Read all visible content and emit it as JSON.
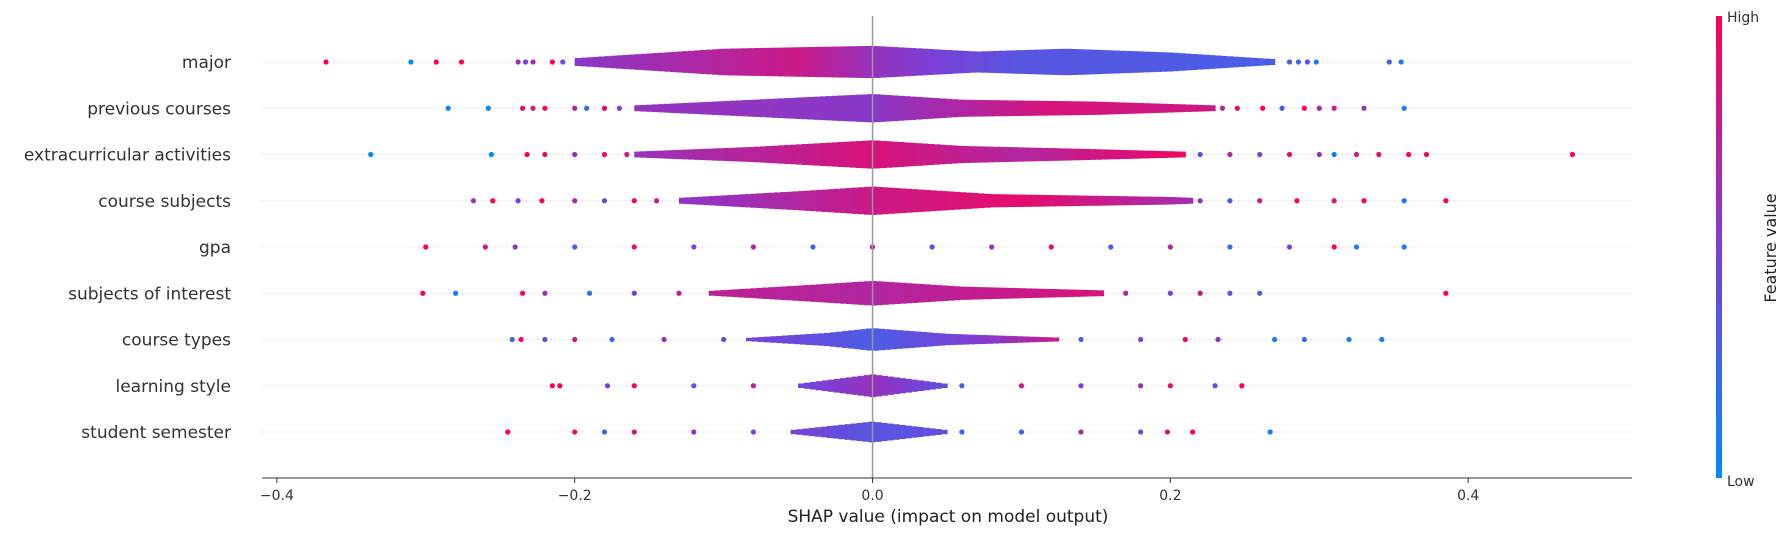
{
  "chart_data": {
    "type": "violin",
    "xlabel": "SHAP value (impact on model output)",
    "xlim": [
      -0.41,
      0.51
    ],
    "xticks": [
      -0.4,
      -0.2,
      0.0,
      0.2,
      0.4
    ],
    "xtick_labels": [
      "−0.4",
      "−0.2",
      "0.0",
      "0.2",
      "0.4"
    ],
    "colorbar": {
      "title": "Feature value",
      "high_label": "High",
      "low_label": "Low",
      "low_color": "#008bfb",
      "mid_color": "#7c3fd6",
      "high_color": "#ff0052"
    },
    "features": [
      {
        "name": "major",
        "range": [
          -0.37,
          0.355
        ],
        "density": [
          [
            -0.2,
            0.2
          ],
          [
            -0.1,
            0.7
          ],
          [
            0.0,
            0.85
          ],
          [
            0.07,
            0.55
          ],
          [
            0.13,
            0.7
          ],
          [
            0.2,
            0.5
          ],
          [
            0.27,
            0.15
          ]
        ],
        "band_color": [
          [
            -0.2,
            0.55
          ],
          [
            -0.05,
            0.8
          ],
          [
            0.0,
            0.6
          ],
          [
            0.1,
            0.35
          ],
          [
            0.27,
            0.3
          ]
        ],
        "points": [
          [
            -0.367,
            1
          ],
          [
            -0.31,
            0
          ],
          [
            -0.293,
            1
          ],
          [
            -0.276,
            1
          ],
          [
            -0.238,
            0.6
          ],
          [
            -0.233,
            0.5
          ],
          [
            -0.228,
            0.7
          ],
          [
            -0.215,
            1
          ],
          [
            -0.208,
            0.4
          ],
          [
            0.28,
            0.3
          ],
          [
            0.286,
            0.2
          ],
          [
            0.292,
            0.4
          ],
          [
            0.298,
            0.1
          ],
          [
            0.347,
            0.3
          ],
          [
            0.355,
            0.1
          ]
        ]
      },
      {
        "name": "previous courses",
        "range": [
          -0.285,
          0.357
        ],
        "density": [
          [
            -0.16,
            0.15
          ],
          [
            -0.08,
            0.45
          ],
          [
            0.0,
            0.75
          ],
          [
            0.06,
            0.45
          ],
          [
            0.15,
            0.35
          ],
          [
            0.23,
            0.15
          ]
        ],
        "band_color": [
          [
            -0.16,
            0.6
          ],
          [
            0.0,
            0.55
          ],
          [
            0.12,
            0.85
          ],
          [
            0.23,
            0.8
          ]
        ],
        "points": [
          [
            -0.285,
            0
          ],
          [
            -0.258,
            0
          ],
          [
            -0.235,
            0.9
          ],
          [
            -0.228,
            0.8
          ],
          [
            -0.22,
            1
          ],
          [
            -0.2,
            0.7
          ],
          [
            -0.192,
            0.2
          ],
          [
            -0.18,
            0.9
          ],
          [
            -0.17,
            0.5
          ],
          [
            0.235,
            0.7
          ],
          [
            0.245,
            0.9
          ],
          [
            0.262,
            1
          ],
          [
            0.275,
            0.3
          ],
          [
            0.29,
            1
          ],
          [
            0.3,
            0.7
          ],
          [
            0.31,
            0.8
          ],
          [
            0.33,
            0.6
          ],
          [
            0.357,
            0.1
          ]
        ]
      },
      {
        "name": "extracurricular activities",
        "range": [
          -0.337,
          0.47
        ],
        "density": [
          [
            -0.16,
            0.15
          ],
          [
            -0.08,
            0.4
          ],
          [
            0.0,
            0.75
          ],
          [
            0.06,
            0.45
          ],
          [
            0.14,
            0.3
          ],
          [
            0.21,
            0.15
          ]
        ],
        "band_color": [
          [
            -0.16,
            0.6
          ],
          [
            0.0,
            0.85
          ],
          [
            0.1,
            0.7
          ],
          [
            0.21,
            0.95
          ]
        ],
        "points": [
          [
            -0.337,
            0
          ],
          [
            -0.256,
            0
          ],
          [
            -0.232,
            1
          ],
          [
            -0.22,
            0.9
          ],
          [
            -0.2,
            0.6
          ],
          [
            -0.18,
            1
          ],
          [
            -0.165,
            0.8
          ],
          [
            0.22,
            0.3
          ],
          [
            0.24,
            0.7
          ],
          [
            0.26,
            0.5
          ],
          [
            0.28,
            0.9
          ],
          [
            0.3,
            0.6
          ],
          [
            0.31,
            0.1
          ],
          [
            0.325,
            0.8
          ],
          [
            0.34,
            0.9
          ],
          [
            0.36,
            1
          ],
          [
            0.372,
            1
          ],
          [
            0.47,
            1
          ]
        ]
      },
      {
        "name": "course subjects",
        "range": [
          -0.268,
          0.385
        ],
        "density": [
          [
            -0.13,
            0.15
          ],
          [
            -0.05,
            0.5
          ],
          [
            0.0,
            0.75
          ],
          [
            0.08,
            0.35
          ],
          [
            0.2,
            0.2
          ],
          [
            0.215,
            0.15
          ]
        ],
        "band_color": [
          [
            -0.13,
            0.55
          ],
          [
            0.0,
            0.8
          ],
          [
            0.1,
            0.9
          ],
          [
            0.215,
            0.65
          ]
        ],
        "points": [
          [
            -0.268,
            0.6
          ],
          [
            -0.255,
            1
          ],
          [
            -0.238,
            0.5
          ],
          [
            -0.222,
            1
          ],
          [
            -0.2,
            0.7
          ],
          [
            -0.18,
            0.4
          ],
          [
            -0.16,
            0.9
          ],
          [
            -0.145,
            0.8
          ],
          [
            0.22,
            0.6
          ],
          [
            0.24,
            0.3
          ],
          [
            0.26,
            0.8
          ],
          [
            0.285,
            1
          ],
          [
            0.31,
            0.8
          ],
          [
            0.33,
            1
          ],
          [
            0.357,
            0.1
          ],
          [
            0.385,
            1
          ]
        ]
      },
      {
        "name": "gpa",
        "range": [
          -0.3,
          0.357
        ],
        "density": [],
        "band_color": [],
        "points": [
          [
            -0.3,
            1
          ],
          [
            -0.26,
            0.8
          ],
          [
            -0.24,
            0.6
          ],
          [
            -0.2,
            0.3
          ],
          [
            -0.16,
            0.9
          ],
          [
            -0.12,
            0.5
          ],
          [
            -0.08,
            0.7
          ],
          [
            -0.04,
            0.2
          ],
          [
            0.0,
            0.8
          ],
          [
            0.04,
            0.4
          ],
          [
            0.08,
            0.6
          ],
          [
            0.12,
            0.9
          ],
          [
            0.16,
            0.3
          ],
          [
            0.2,
            0.7
          ],
          [
            0.24,
            0.2
          ],
          [
            0.28,
            0.5
          ],
          [
            0.31,
            1
          ],
          [
            0.325,
            0.1
          ],
          [
            0.357,
            0.1
          ]
        ]
      },
      {
        "name": "subjects of interest",
        "range": [
          -0.302,
          0.385
        ],
        "density": [
          [
            -0.11,
            0.12
          ],
          [
            -0.04,
            0.45
          ],
          [
            0.0,
            0.65
          ],
          [
            0.06,
            0.35
          ],
          [
            0.155,
            0.15
          ]
        ],
        "band_color": [
          [
            -0.11,
            0.75
          ],
          [
            0.0,
            0.7
          ],
          [
            0.155,
            0.85
          ]
        ],
        "points": [
          [
            -0.302,
            1
          ],
          [
            -0.28,
            0.1
          ],
          [
            -0.235,
            1
          ],
          [
            -0.22,
            0.6
          ],
          [
            -0.19,
            0.2
          ],
          [
            -0.16,
            0.5
          ],
          [
            -0.13,
            0.8
          ],
          [
            0.17,
            0.7
          ],
          [
            0.2,
            0.5
          ],
          [
            0.22,
            0.8
          ],
          [
            0.24,
            0.4
          ],
          [
            0.26,
            0.3
          ],
          [
            0.385,
            1
          ]
        ]
      },
      {
        "name": "course types",
        "range": [
          -0.242,
          0.342
        ],
        "density": [
          [
            -0.085,
            0.08
          ],
          [
            -0.03,
            0.35
          ],
          [
            0.0,
            0.6
          ],
          [
            0.05,
            0.3
          ],
          [
            0.125,
            0.1
          ]
        ],
        "band_color": [
          [
            -0.085,
            0.5
          ],
          [
            0.0,
            0.3
          ],
          [
            0.08,
            0.55
          ],
          [
            0.125,
            0.8
          ]
        ],
        "points": [
          [
            -0.242,
            0.3
          ],
          [
            -0.236,
            1
          ],
          [
            -0.22,
            0.4
          ],
          [
            -0.2,
            0.8
          ],
          [
            -0.175,
            0.2
          ],
          [
            -0.14,
            0.6
          ],
          [
            -0.1,
            0.4
          ],
          [
            0.14,
            0.3
          ],
          [
            0.18,
            0.5
          ],
          [
            0.21,
            0.9
          ],
          [
            0.232,
            0.6
          ],
          [
            0.27,
            0.1
          ],
          [
            0.29,
            0.2
          ],
          [
            0.32,
            0.1
          ],
          [
            0.342,
            0.1
          ]
        ]
      },
      {
        "name": "learning style",
        "range": [
          -0.215,
          0.248
        ],
        "density": [
          [
            -0.05,
            0.1
          ],
          [
            0.0,
            0.6
          ],
          [
            0.05,
            0.1
          ]
        ],
        "band_color": [
          [
            -0.05,
            0.45
          ],
          [
            0.0,
            0.6
          ],
          [
            0.05,
            0.4
          ]
        ],
        "points": [
          [
            -0.215,
            1
          ],
          [
            -0.21,
            1
          ],
          [
            -0.178,
            0.5
          ],
          [
            -0.16,
            0.9
          ],
          [
            -0.12,
            0.4
          ],
          [
            -0.08,
            0.7
          ],
          [
            0.06,
            0.3
          ],
          [
            0.1,
            0.8
          ],
          [
            0.14,
            0.5
          ],
          [
            0.18,
            0.6
          ],
          [
            0.2,
            0.9
          ],
          [
            0.23,
            0.4
          ],
          [
            0.248,
            1
          ]
        ]
      },
      {
        "name": "student semester",
        "range": [
          -0.245,
          0.267
        ],
        "density": [
          [
            -0.055,
            0.1
          ],
          [
            0.0,
            0.55
          ],
          [
            0.05,
            0.1
          ]
        ],
        "band_color": [
          [
            -0.055,
            0.5
          ],
          [
            0.0,
            0.35
          ],
          [
            0.05,
            0.4
          ]
        ],
        "points": [
          [
            -0.245,
            1
          ],
          [
            -0.2,
            0.9
          ],
          [
            -0.18,
            0.3
          ],
          [
            -0.16,
            0.8
          ],
          [
            -0.12,
            0.6
          ],
          [
            -0.08,
            0.5
          ],
          [
            0.06,
            0.2
          ],
          [
            0.1,
            0.3
          ],
          [
            0.14,
            0.7
          ],
          [
            0.18,
            0.4
          ],
          [
            0.198,
            0.8
          ],
          [
            0.215,
            1
          ],
          [
            0.267,
            0.1
          ]
        ]
      }
    ]
  }
}
